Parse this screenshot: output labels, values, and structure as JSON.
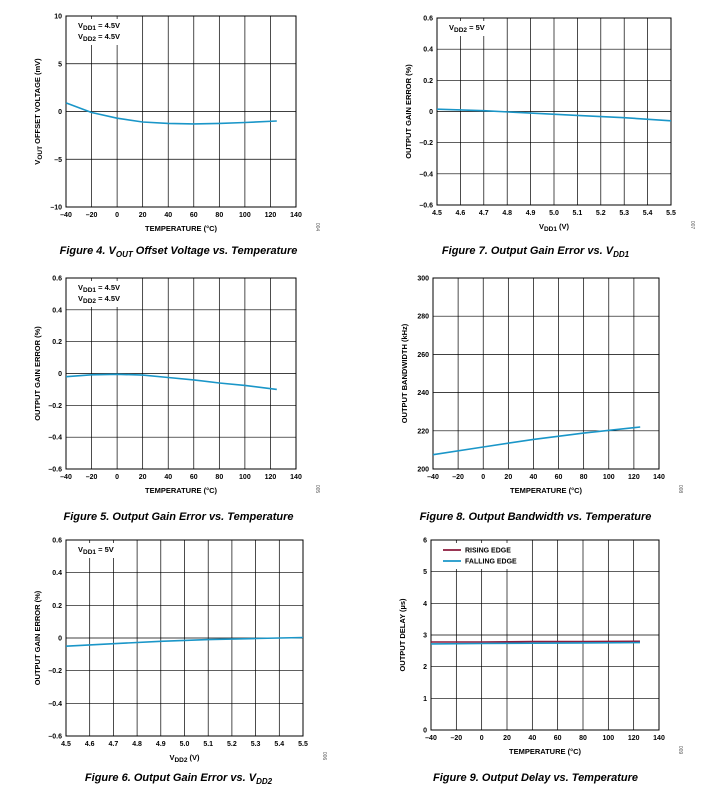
{
  "charts": [
    {
      "caption": {
        "pre": "Figure 4. V",
        "sub": "OUT",
        "post": " Offset Voltage vs. Temperature"
      },
      "ylabel": {
        "pre": "V",
        "sub": "OUT",
        "post": " OFFSET VOLTAGE (mV)"
      },
      "xlabel": {
        "pre": "TEMPERATURE (°C)",
        "sub": "",
        "post": ""
      },
      "side_code": "004",
      "annotations": [
        {
          "pre": "V",
          "sub": "DD1",
          "post": " = 4.5V"
        },
        {
          "pre": "V",
          "sub": "DD2",
          "post": " = 4.5V"
        }
      ],
      "legend": [],
      "series_colors": [
        "#1a96c8"
      ]
    },
    {
      "caption": {
        "pre": "Figure 7. Output Gain Error vs. V",
        "sub": "DD1",
        "post": ""
      },
      "ylabel": {
        "pre": "OUTPUT GAIN ERROR (%)",
        "sub": "",
        "post": ""
      },
      "xlabel": {
        "pre": "V",
        "sub": "DD1",
        "post": " (V)"
      },
      "side_code": "007",
      "annotations": [
        {
          "pre": "V",
          "sub": "DD2",
          "post": " = 5V"
        }
      ],
      "legend": [],
      "series_colors": [
        "#1a96c8"
      ]
    },
    {
      "caption": {
        "pre": "Figure 5. Output Gain Error vs. Temperature",
        "sub": "",
        "post": ""
      },
      "ylabel": {
        "pre": "OUTPUT GAIN ERROR (%)",
        "sub": "",
        "post": ""
      },
      "xlabel": {
        "pre": "TEMPERATURE (°C)",
        "sub": "",
        "post": ""
      },
      "side_code": "005",
      "annotations": [
        {
          "pre": "V",
          "sub": "DD1",
          "post": " = 4.5V"
        },
        {
          "pre": "V",
          "sub": "DD2",
          "post": " = 4.5V"
        }
      ],
      "legend": [],
      "series_colors": [
        "#1a96c8"
      ]
    },
    {
      "caption": {
        "pre": "Figure 8. Output Bandwidth vs. Temperature",
        "sub": "",
        "post": ""
      },
      "ylabel": {
        "pre": "OUTPUT BANDWIDTH (kHz)",
        "sub": "",
        "post": ""
      },
      "xlabel": {
        "pre": "TEMPERATURE (°C)",
        "sub": "",
        "post": ""
      },
      "side_code": "008",
      "annotations": [],
      "legend": [],
      "series_colors": [
        "#1a96c8"
      ]
    },
    {
      "caption": {
        "pre": "Figure 6. Output Gain Error vs. V",
        "sub": "DD2",
        "post": ""
      },
      "ylabel": {
        "pre": "OUTPUT GAIN ERROR (%)",
        "sub": "",
        "post": ""
      },
      "xlabel": {
        "pre": "V",
        "sub": "DD2",
        "post": " (V)"
      },
      "side_code": "006",
      "annotations": [
        {
          "pre": "V",
          "sub": "DD1",
          "post": " = 5V"
        }
      ],
      "legend": [],
      "series_colors": [
        "#1a96c8"
      ]
    },
    {
      "caption": {
        "pre": "Figure 9. Output Delay vs. Temperature",
        "sub": "",
        "post": ""
      },
      "ylabel": {
        "pre": "OUTPUT DELAY (µs)",
        "sub": "",
        "post": ""
      },
      "xlabel": {
        "pre": "TEMPERATURE (°C)",
        "sub": "",
        "post": ""
      },
      "side_code": "009",
      "annotations": [],
      "legend": [
        "RISING EDGE",
        "FALLING EDGE"
      ],
      "series_colors": [
        "#8b1a3c",
        "#1a96c8"
      ]
    }
  ],
  "chart_data": [
    {
      "type": "line",
      "xlim": [
        -40,
        140
      ],
      "ylim": [
        -10,
        10
      ],
      "x_ticks": [
        "–40",
        "–20",
        "0",
        "20",
        "40",
        "60",
        "80",
        "100",
        "120",
        "140"
      ],
      "y_ticks": [
        "–10",
        "–5",
        "0",
        "5",
        "10"
      ],
      "grid": true,
      "series": [
        {
          "x": [
            -40,
            -20,
            0,
            20,
            40,
            60,
            80,
            100,
            125
          ],
          "y": [
            0.9,
            -0.1,
            -0.7,
            -1.1,
            -1.25,
            -1.3,
            -1.25,
            -1.15,
            -1.0
          ]
        }
      ]
    },
    {
      "type": "line",
      "xlim": [
        4.5,
        5.5
      ],
      "ylim": [
        -0.6,
        0.6
      ],
      "x_ticks": [
        "4.5",
        "4.6",
        "4.7",
        "4.8",
        "4.9",
        "5.0",
        "5.1",
        "5.2",
        "5.3",
        "5.4",
        "5.5"
      ],
      "y_ticks": [
        "–0.6",
        "–0.4",
        "–0.2",
        "0",
        "0.2",
        "0.4",
        "0.6"
      ],
      "grid": true,
      "series": [
        {
          "x": [
            4.5,
            4.7,
            4.9,
            5.1,
            5.3,
            5.5
          ],
          "y": [
            0.015,
            0.005,
            -0.01,
            -0.025,
            -0.04,
            -0.06
          ]
        }
      ]
    },
    {
      "type": "line",
      "xlim": [
        -40,
        140
      ],
      "ylim": [
        -0.6,
        0.6
      ],
      "x_ticks": [
        "–40",
        "–20",
        "0",
        "20",
        "40",
        "60",
        "80",
        "100",
        "120",
        "140"
      ],
      "y_ticks": [
        "–0.6",
        "–0.4",
        "–0.2",
        "0",
        "0.2",
        "0.4",
        "0.6"
      ],
      "grid": true,
      "series": [
        {
          "x": [
            -40,
            -20,
            0,
            20,
            40,
            60,
            80,
            100,
            125
          ],
          "y": [
            -0.02,
            -0.008,
            -0.005,
            -0.01,
            -0.025,
            -0.04,
            -0.06,
            -0.075,
            -0.1
          ]
        }
      ]
    },
    {
      "type": "line",
      "xlim": [
        -40,
        140
      ],
      "ylim": [
        200,
        300
      ],
      "x_ticks": [
        "–40",
        "–20",
        "0",
        "20",
        "40",
        "60",
        "80",
        "100",
        "120",
        "140"
      ],
      "y_ticks": [
        "200",
        "220",
        "240",
        "260",
        "280",
        "300"
      ],
      "grid": true,
      "series": [
        {
          "x": [
            -40,
            0,
            40,
            80,
            125
          ],
          "y": [
            207.5,
            211.5,
            215.5,
            218.8,
            222
          ]
        }
      ]
    },
    {
      "type": "line",
      "xlim": [
        4.5,
        5.5
      ],
      "ylim": [
        -0.6,
        0.6
      ],
      "x_ticks": [
        "4.5",
        "4.6",
        "4.7",
        "4.8",
        "4.9",
        "5.0",
        "5.1",
        "5.2",
        "5.3",
        "5.4",
        "5.5"
      ],
      "y_ticks": [
        "–0.6",
        "–0.4",
        "–0.2",
        "0",
        "0.2",
        "0.4",
        "0.6"
      ],
      "grid": true,
      "series": [
        {
          "x": [
            4.5,
            4.7,
            4.9,
            5.1,
            5.3,
            5.5
          ],
          "y": [
            -0.05,
            -0.035,
            -0.02,
            -0.01,
            -0.003,
            0.003
          ]
        }
      ]
    },
    {
      "type": "line",
      "xlim": [
        -40,
        140
      ],
      "ylim": [
        0,
        6
      ],
      "x_ticks": [
        "–40",
        "–20",
        "0",
        "20",
        "40",
        "60",
        "80",
        "100",
        "120",
        "140"
      ],
      "y_ticks": [
        "0",
        "1",
        "2",
        "3",
        "4",
        "5",
        "6"
      ],
      "grid": true,
      "legend_position": "top-left",
      "series": [
        {
          "name": "RISING EDGE",
          "x": [
            -40,
            0,
            40,
            80,
            125
          ],
          "y": [
            2.78,
            2.78,
            2.79,
            2.79,
            2.8
          ]
        },
        {
          "name": "FALLING EDGE",
          "x": [
            -40,
            0,
            40,
            80,
            125
          ],
          "y": [
            2.72,
            2.73,
            2.74,
            2.75,
            2.76
          ]
        }
      ]
    }
  ]
}
